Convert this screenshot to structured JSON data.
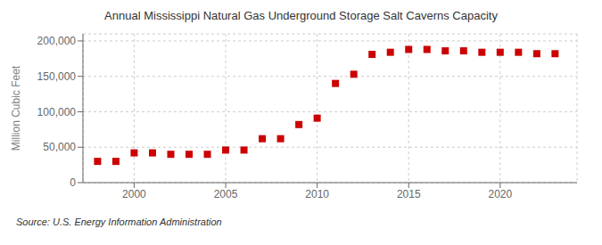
{
  "chart_data": {
    "type": "scatter",
    "title": "Annual Mississippi Natural Gas Underground Storage Salt Caverns Capacity",
    "ylabel": "Million Cubic Feet",
    "annotations": [
      "Source: U.S. Energy Information Administration"
    ],
    "x": [
      1998,
      1999,
      2000,
      2001,
      2002,
      2003,
      2004,
      2005,
      2006,
      2007,
      2008,
      2009,
      2010,
      2011,
      2012,
      2013,
      2014,
      2015,
      2016,
      2017,
      2018,
      2019,
      2020,
      2021,
      2022,
      2023
    ],
    "values": [
      30000,
      30000,
      42000,
      42000,
      40000,
      40000,
      40000,
      46000,
      46000,
      62000,
      62000,
      82000,
      91000,
      140000,
      153000,
      181000,
      184000,
      188000,
      188000,
      186000,
      186000,
      184000,
      184000,
      184000,
      182000,
      182000
    ],
    "color": "#cc0000",
    "marker": "square",
    "xlim": [
      1997.2,
      2024.2
    ],
    "ylim": [
      0,
      210000
    ],
    "xticks": [
      2000,
      2005,
      2010,
      2015,
      2020
    ],
    "yticks": [
      0,
      {
        "value": 50000,
        "label": "50,000"
      },
      {
        "value": 100000,
        "label": "100,000"
      },
      {
        "value": 150000,
        "label": "150,000"
      },
      {
        "value": 200000,
        "label": "200,000"
      }
    ],
    "grid": true
  }
}
